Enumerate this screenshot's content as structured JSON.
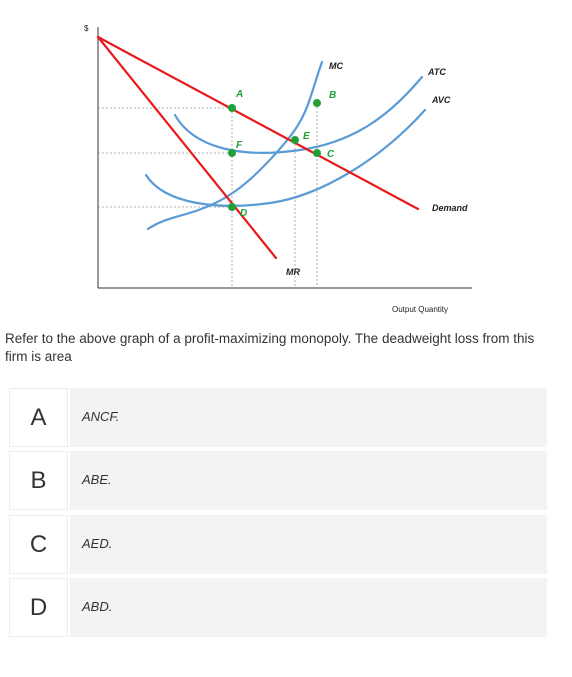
{
  "graph": {
    "y_axis_label": "$",
    "x_axis_label": "Output Quantity",
    "curves": {
      "mc": "MC",
      "atc": "ATC",
      "avc": "AVC",
      "demand": "Demand",
      "mr": "MR"
    },
    "points": {
      "a": "A",
      "b": "B",
      "c": "C",
      "d": "D",
      "e": "E",
      "f": "F"
    },
    "colors": {
      "demand_mr": "#e8191b",
      "cost_curves": "#5b9bd5",
      "points": "#21a038"
    }
  },
  "question": {
    "text": "Refer to the above graph of a profit-maximizing monopoly. The deadweight loss from this firm is area"
  },
  "options": [
    {
      "letter": "A",
      "text": "ANCF."
    },
    {
      "letter": "B",
      "text": "ABE."
    },
    {
      "letter": "C",
      "text": "AED."
    },
    {
      "letter": "D",
      "text": "ABD."
    }
  ]
}
